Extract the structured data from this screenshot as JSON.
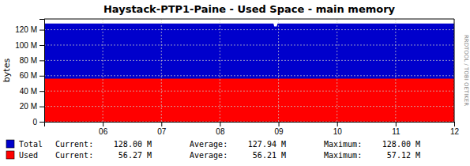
{
  "chart_data": {
    "type": "area",
    "title": "Haystack-PTP1-Paine - Used Space - main memory",
    "y_label": "bytes",
    "annotations": [
      "RRDTOOL / TOBI OETIKER"
    ],
    "x": [
      5,
      8.913828,
      8.927856,
      8.96994,
      8.983968,
      12
    ],
    "xlim": [
      5,
      12
    ],
    "xticks": [
      {
        "value": 6,
        "label": "06"
      },
      {
        "value": 7,
        "label": "07"
      },
      {
        "value": 8,
        "label": "08"
      },
      {
        "value": 9,
        "label": "09"
      },
      {
        "value": 10,
        "label": "10"
      },
      {
        "value": 11,
        "label": "11"
      },
      {
        "value": 12,
        "label": "12"
      }
    ],
    "ylim": [
      0,
      134000000
    ],
    "yticks": [
      0,
      {
        "value": 20000000,
        "label": "20 M"
      },
      {
        "value": 40000000,
        "label": "40 M"
      },
      {
        "value": 60000000,
        "label": "60 M"
      },
      {
        "value": 80000000,
        "label": "80 M"
      },
      {
        "value": 100000000,
        "label": "100 M"
      },
      {
        "value": 120000000,
        "label": "120 M"
      }
    ],
    "grid": true,
    "series": [
      {
        "name": "Total",
        "color": "#0000cc",
        "values": [
          128000000,
          128000000,
          124160000,
          124160000,
          128000000,
          128000000
        ],
        "stats": [
          {
            "name": "Current:",
            "value": 128000000,
            "label": "128.00 M"
          },
          {
            "name": "Average:",
            "value": 127940000,
            "label": "127.94 M"
          },
          {
            "name": "Maximum:",
            "value": 128000000,
            "label": "128.00 M"
          }
        ]
      },
      {
        "name": "Used",
        "color": "#ff0000",
        "values": [
          56210000,
          56210000,
          56210000,
          56210000,
          56210000,
          56210000
        ],
        "stats": [
          {
            "name": "Current:",
            "value": 56270000,
            "label": "56.27 M"
          },
          {
            "name": "Average:",
            "value": 56210000,
            "label": "56.21 M"
          },
          {
            "name": "Maximum:",
            "value": 57120000,
            "label": "57.12 M"
          }
        ]
      }
    ]
  }
}
